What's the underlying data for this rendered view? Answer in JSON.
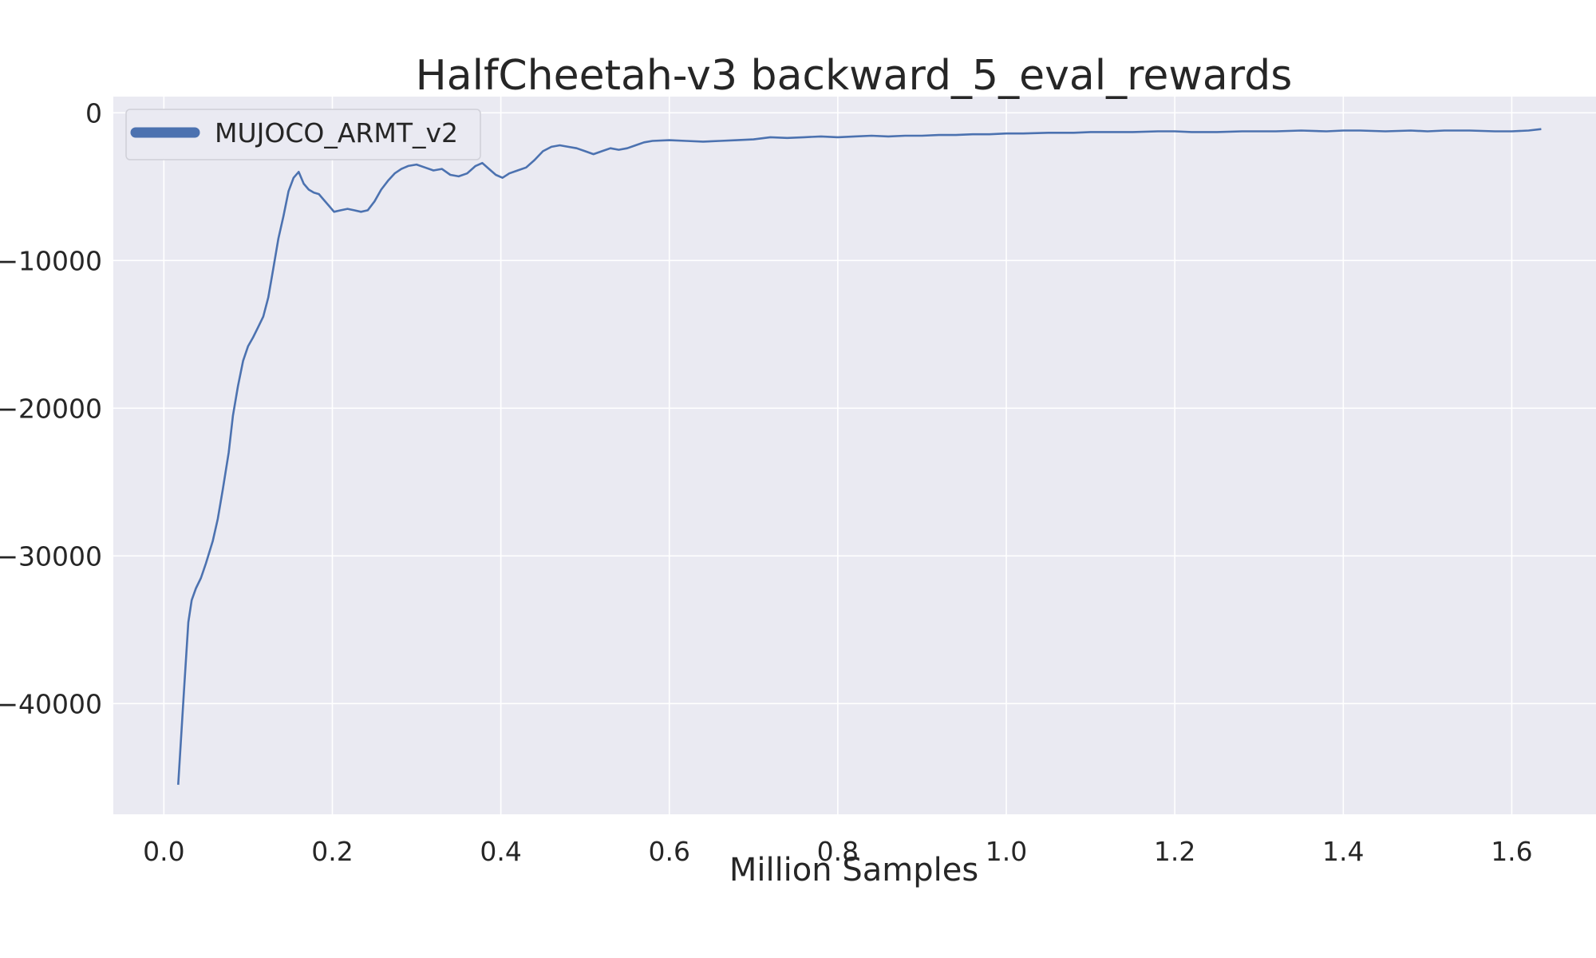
{
  "chart_data": {
    "type": "line",
    "title": "HalfCheetah-v3 backward_5_eval_rewards",
    "xlabel": "Million Samples",
    "ylabel": "",
    "xlim": [
      -0.06,
      1.7
    ],
    "ylim": [
      -47500,
      1100
    ],
    "x_ticks": [
      0.0,
      0.2,
      0.4,
      0.6,
      0.8,
      1.0,
      1.2,
      1.4,
      1.6
    ],
    "x_tick_labels": [
      "0.0",
      "0.2",
      "0.4",
      "0.6",
      "0.8",
      "1.0",
      "1.2",
      "1.4",
      "1.6"
    ],
    "y_ticks": [
      0,
      -10000,
      -20000,
      -30000,
      -40000
    ],
    "y_tick_labels": [
      "0",
      "−10000",
      "−20000",
      "−30000",
      "−40000"
    ],
    "grid": true,
    "legend_position": "top-left",
    "background": "#eaeaf2",
    "grid_color": "#ffffff",
    "series": [
      {
        "name": "MUJOCO_ARMT_v2",
        "color": "#4c72b0",
        "x": [
          0.017,
          0.024,
          0.029,
          0.033,
          0.038,
          0.044,
          0.05,
          0.058,
          0.064,
          0.07,
          0.077,
          0.082,
          0.088,
          0.094,
          0.1,
          0.106,
          0.112,
          0.118,
          0.124,
          0.13,
          0.136,
          0.142,
          0.148,
          0.154,
          0.16,
          0.166,
          0.172,
          0.178,
          0.184,
          0.19,
          0.196,
          0.202,
          0.21,
          0.218,
          0.226,
          0.234,
          0.242,
          0.25,
          0.258,
          0.266,
          0.274,
          0.282,
          0.29,
          0.3,
          0.31,
          0.32,
          0.33,
          0.34,
          0.35,
          0.36,
          0.37,
          0.378,
          0.386,
          0.394,
          0.402,
          0.41,
          0.42,
          0.43,
          0.44,
          0.45,
          0.46,
          0.47,
          0.48,
          0.49,
          0.5,
          0.51,
          0.52,
          0.53,
          0.54,
          0.55,
          0.56,
          0.57,
          0.58,
          0.6,
          0.62,
          0.64,
          0.66,
          0.68,
          0.7,
          0.72,
          0.74,
          0.76,
          0.78,
          0.8,
          0.82,
          0.84,
          0.86,
          0.88,
          0.9,
          0.92,
          0.94,
          0.96,
          0.98,
          1.0,
          1.02,
          1.05,
          1.08,
          1.1,
          1.12,
          1.15,
          1.18,
          1.2,
          1.22,
          1.25,
          1.28,
          1.3,
          1.32,
          1.35,
          1.38,
          1.4,
          1.42,
          1.45,
          1.48,
          1.5,
          1.52,
          1.55,
          1.58,
          1.6,
          1.62,
          1.635
        ],
        "values": [
          -45500,
          -39000,
          -34500,
          -33000,
          -32200,
          -31500,
          -30500,
          -29000,
          -27500,
          -25500,
          -23000,
          -20500,
          -18500,
          -16800,
          -15800,
          -15200,
          -14500,
          -13800,
          -12500,
          -10500,
          -8500,
          -7000,
          -5300,
          -4400,
          -4000,
          -4800,
          -5200,
          -5400,
          -5500,
          -5900,
          -6300,
          -6700,
          -6600,
          -6500,
          -6600,
          -6700,
          -6600,
          -6000,
          -5200,
          -4600,
          -4100,
          -3800,
          -3600,
          -3500,
          -3700,
          -3900,
          -3800,
          -4200,
          -4300,
          -4100,
          -3600,
          -3400,
          -3800,
          -4200,
          -4400,
          -4100,
          -3900,
          -3700,
          -3200,
          -2600,
          -2300,
          -2200,
          -2300,
          -2400,
          -2600,
          -2800,
          -2600,
          -2400,
          -2500,
          -2400,
          -2200,
          -2000,
          -1900,
          -1850,
          -1900,
          -1950,
          -1900,
          -1850,
          -1800,
          -1650,
          -1700,
          -1650,
          -1600,
          -1650,
          -1600,
          -1550,
          -1600,
          -1550,
          -1550,
          -1500,
          -1500,
          -1450,
          -1450,
          -1400,
          -1400,
          -1350,
          -1350,
          -1300,
          -1300,
          -1300,
          -1250,
          -1250,
          -1300,
          -1300,
          -1250,
          -1250,
          -1250,
          -1200,
          -1250,
          -1200,
          -1200,
          -1250,
          -1200,
          -1250,
          -1200,
          -1200,
          -1250,
          -1250,
          -1200,
          -1100
        ]
      }
    ]
  }
}
